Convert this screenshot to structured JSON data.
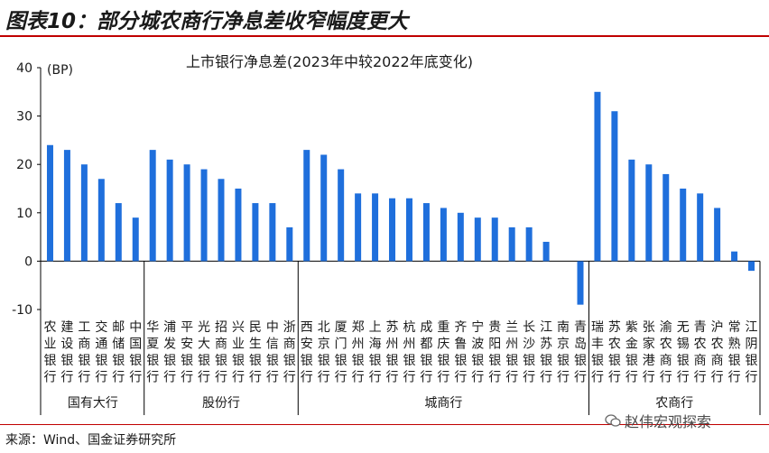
{
  "figure": {
    "title": "图表10：部分城农商行净息差收窄幅度更大",
    "source": "来源：Wind、国金证券研究所",
    "watermark": "赵伟宏观探索"
  },
  "chart_data": {
    "type": "bar",
    "title": "上市银行净息差(2023年中较2022年底变化)",
    "ylabel": "(BP)",
    "ylim": [
      -10,
      40
    ],
    "yticks": [
      -10,
      0,
      10,
      20,
      30,
      40
    ],
    "bar_color": "#1f6fdc",
    "categories": [
      "农业银行",
      "建设银行",
      "工商银行",
      "交通银行",
      "邮储银行",
      "中国银行",
      "华夏银行",
      "浦发银行",
      "平安银行",
      "光大银行",
      "招商银行",
      "兴业银行",
      "民生银行",
      "中信银行",
      "浙商银行",
      "西安银行",
      "北京银行",
      "厦门银行",
      "郑州银行",
      "上海银行",
      "苏州银行",
      "杭州银行",
      "成都银行",
      "重庆银行",
      "齐鲁银行",
      "宁波银行",
      "贵阳银行",
      "兰州银行",
      "长沙银行",
      "江苏银行",
      "南京银行",
      "青岛银行",
      "瑞丰银行",
      "苏农银行",
      "紫金银行",
      "张家港行",
      "渝农商行",
      "无锡银行",
      "青农商行",
      "沪农商行",
      "常熟银行",
      "江阴银行"
    ],
    "values": [
      24,
      23,
      20,
      17,
      12,
      9,
      23,
      21,
      20,
      19,
      17,
      15,
      12,
      12,
      7,
      23,
      22,
      19,
      14,
      14,
      13,
      13,
      12,
      11,
      10,
      9,
      9,
      7,
      7,
      4,
      0,
      -9,
      35,
      31,
      21,
      20,
      18,
      15,
      14,
      11,
      2,
      -2
    ],
    "groups": [
      {
        "name": "国有大行",
        "count": 6
      },
      {
        "name": "股份行",
        "count": 9
      },
      {
        "name": "城商行",
        "count": 17
      },
      {
        "name": "农商行",
        "count": 10
      }
    ]
  }
}
